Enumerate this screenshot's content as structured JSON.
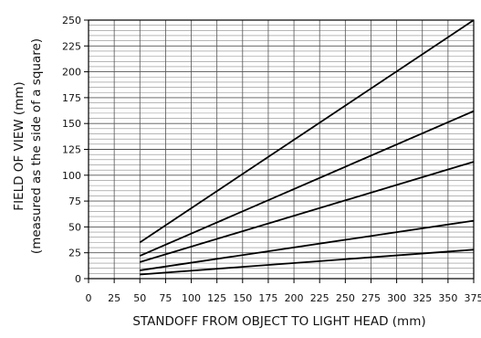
{
  "chart_data": {
    "type": "line",
    "title": "",
    "xlabel": "STANDOFF FROM OBJECT TO LIGHT HEAD (mm)",
    "ylabel_line1": "FIELD OF VIEW (mm)",
    "ylabel_line2": "(measured as the side of a square)",
    "xlim": [
      0,
      375
    ],
    "ylim": [
      0,
      250
    ],
    "x_ticks": [
      0,
      25,
      50,
      75,
      100,
      125,
      150,
      175,
      200,
      225,
      250,
      275,
      300,
      325,
      350,
      375
    ],
    "y_ticks": [
      0,
      25,
      50,
      75,
      100,
      125,
      150,
      175,
      200,
      225,
      250
    ],
    "grid": true,
    "minor_y_step": 5,
    "legend": "none",
    "line_color": "#000000",
    "series": [
      {
        "x": [
          50,
          375
        ],
        "y": [
          35,
          250
        ]
      },
      {
        "x": [
          50,
          375
        ],
        "y": [
          22,
          162
        ]
      },
      {
        "x": [
          50,
          375
        ],
        "y": [
          16,
          113
        ]
      },
      {
        "x": [
          50,
          375
        ],
        "y": [
          8,
          56
        ]
      },
      {
        "x": [
          50,
          375
        ],
        "y": [
          4,
          28
        ]
      }
    ]
  }
}
